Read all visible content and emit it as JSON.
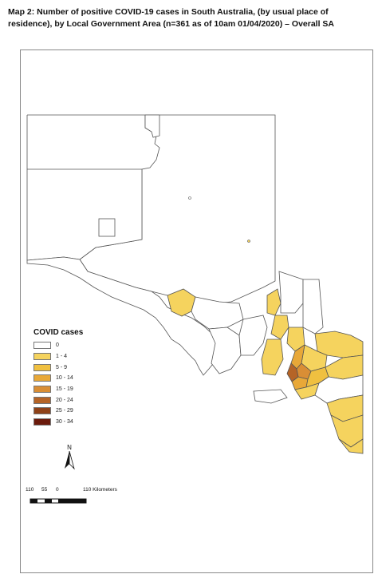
{
  "title": "Map 2: Number of positive COVID-19 cases in South Australia, (by usual place of residence), by Local Government Area (n=361 as of 10am 01/04/2020) – Overall SA",
  "legend": {
    "title": "COVID cases",
    "classes": [
      {
        "label": "0",
        "color": "#ffffff"
      },
      {
        "label": "1 - 4",
        "color": "#f5d35e"
      },
      {
        "label": "5 - 9",
        "color": "#f0c040"
      },
      {
        "label": "10 - 14",
        "color": "#e8a838"
      },
      {
        "label": "15 - 19",
        "color": "#d98e35"
      },
      {
        "label": "20 - 24",
        "color": "#b56427"
      },
      {
        "label": "25 - 29",
        "color": "#8f4219"
      },
      {
        "label": "30 - 34",
        "color": "#6b1a0c"
      }
    ]
  },
  "north_arrow": {
    "label": "N",
    "icon": "north-arrow-icon"
  },
  "scale_bar": {
    "labels": [
      "110",
      "55",
      "0",
      "110 Kilometers"
    ]
  },
  "colors": {
    "boundary": "#555555",
    "background": "#ffffff"
  }
}
